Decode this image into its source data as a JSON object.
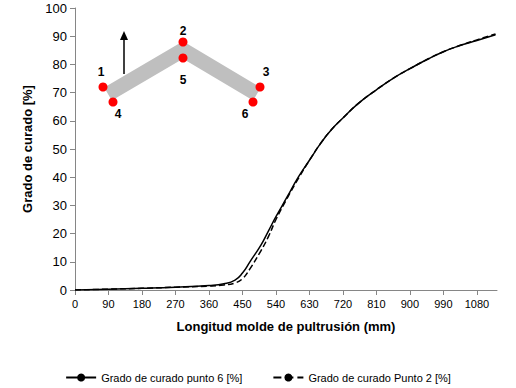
{
  "chart_data": {
    "type": "line",
    "x_label": "Longitud molde de pultrusión (mm)",
    "y_label": "Grado de curado [%]",
    "x": [
      0,
      90,
      180,
      270,
      360,
      400,
      430,
      450,
      470,
      500,
      520,
      540,
      570,
      600,
      630,
      660,
      690,
      720,
      760,
      810,
      860,
      900,
      950,
      990,
      1030,
      1080,
      1130
    ],
    "series": [
      {
        "name": "Grado de curado punto 6 [%]",
        "color": "#000000",
        "line_style": "solid",
        "values": [
          0,
          0.3,
          0.6,
          1,
          1.6,
          2.2,
          3.5,
          6,
          10,
          16,
          21,
          26,
          33,
          40,
          46,
          52,
          57,
          61,
          66,
          71,
          75.5,
          78.5,
          82,
          84.5,
          86.5,
          88.5,
          90.5
        ]
      },
      {
        "name": "Grado de curado Punto 2 [%]",
        "color": "#000000",
        "line_style": "dashed",
        "values": [
          0,
          0.3,
          0.6,
          1,
          1.4,
          1.8,
          2.5,
          4,
          7.5,
          14,
          19,
          25,
          32.5,
          39.5,
          46,
          52,
          57,
          61,
          66,
          71,
          75.5,
          78.5,
          82,
          84.5,
          86.5,
          88.7,
          90.8
        ]
      }
    ],
    "xlim": [
      0,
      1134
    ],
    "xticks": [
      0,
      90,
      180,
      270,
      360,
      450,
      540,
      630,
      720,
      810,
      900,
      990,
      1080
    ],
    "ylim": [
      0,
      100
    ],
    "yticks": [
      0,
      10,
      20,
      30,
      40,
      50,
      60,
      70,
      80,
      90,
      100
    ],
    "grid": false,
    "legend": "bottom",
    "annotations": [
      "1",
      "2",
      "3",
      "4",
      "5",
      "6"
    ]
  }
}
